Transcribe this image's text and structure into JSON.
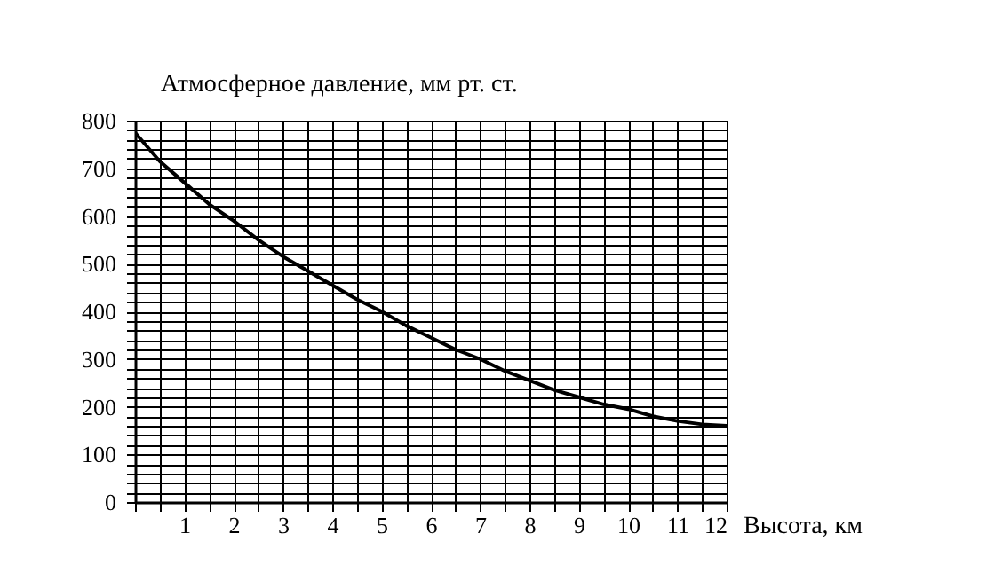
{
  "chart_data": {
    "type": "line",
    "xlabel": "Высота, км",
    "ylabel": "Атмосферное давление, мм  рт. ст.",
    "x": [
      0,
      0.5,
      1,
      1.5,
      2,
      2.5,
      3,
      3.5,
      4,
      4.5,
      5,
      5.5,
      6,
      6.5,
      7,
      7.5,
      8,
      8.5,
      9,
      9.5,
      10,
      10.5,
      11,
      11.5,
      12
    ],
    "series": [
      {
        "color": "#000000",
        "values": [
          775,
          715,
          670,
          625,
          590,
          550,
          515,
          485,
          455,
          425,
          400,
          370,
          345,
          320,
          300,
          275,
          255,
          235,
          220,
          205,
          195,
          180,
          170,
          163,
          160
        ]
      }
    ],
    "xlim": [
      0,
      12
    ],
    "ylim": [
      0,
      800
    ],
    "xticks": [
      {
        "value": 0,
        "label": null
      },
      {
        "value": 0.5,
        "label": null
      },
      1,
      {
        "value": 1.5,
        "label": null
      },
      2,
      {
        "value": 2.5,
        "label": null
      },
      3,
      {
        "value": 3.5,
        "label": null
      },
      4,
      {
        "value": 4.5,
        "label": null
      },
      5,
      {
        "value": 5.5,
        "label": null
      },
      6,
      {
        "value": 6.5,
        "label": null
      },
      7,
      {
        "value": 7.5,
        "label": null
      },
      8,
      {
        "value": 8.5,
        "label": null
      },
      9,
      {
        "value": 9.5,
        "label": null
      },
      10,
      {
        "value": 10.5,
        "label": null
      },
      11,
      {
        "value": 11.5,
        "label": null
      },
      12
    ],
    "yticks": [
      0,
      {
        "value": 20,
        "label": null
      },
      {
        "value": 40,
        "label": null
      },
      {
        "value": 60,
        "label": null
      },
      {
        "value": 80,
        "label": null
      },
      100,
      {
        "value": 120,
        "label": null
      },
      {
        "value": 140,
        "label": null
      },
      {
        "value": 160,
        "label": null
      },
      {
        "value": 180,
        "label": null
      },
      200,
      {
        "value": 220,
        "label": null
      },
      {
        "value": 240,
        "label": null
      },
      {
        "value": 260,
        "label": null
      },
      {
        "value": 280,
        "label": null
      },
      300,
      {
        "value": 320,
        "label": null
      },
      {
        "value": 340,
        "label": null
      },
      {
        "value": 360,
        "label": null
      },
      {
        "value": 380,
        "label": null
      },
      400,
      {
        "value": 420,
        "label": null
      },
      {
        "value": 440,
        "label": null
      },
      {
        "value": 460,
        "label": null
      },
      {
        "value": 480,
        "label": null
      },
      500,
      {
        "value": 520,
        "label": null
      },
      {
        "value": 540,
        "label": null
      },
      {
        "value": 560,
        "label": null
      },
      {
        "value": 580,
        "label": null
      },
      600,
      {
        "value": 620,
        "label": null
      },
      {
        "value": 640,
        "label": null
      },
      {
        "value": 660,
        "label": null
      },
      {
        "value": 680,
        "label": null
      },
      700,
      {
        "value": 720,
        "label": null
      },
      {
        "value": 740,
        "label": null
      },
      {
        "value": 760,
        "label": null
      },
      {
        "value": 780,
        "label": null
      },
      800
    ],
    "grid": true,
    "marker": "none",
    "line_style": "solid"
  }
}
